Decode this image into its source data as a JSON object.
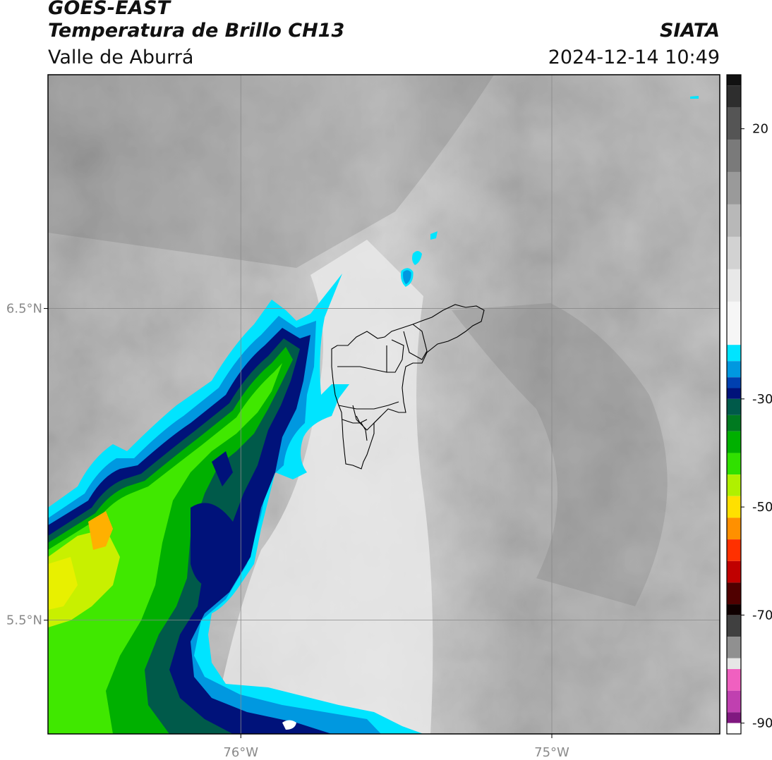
{
  "header": {
    "satellite": "GOES-EAST",
    "product": "Temperatura de Brillo CH13",
    "region": "Valle de Aburrá",
    "agency": "SIATA",
    "datetime": "2024-12-14 10:49"
  },
  "map": {
    "lon_range": [
      -76.62,
      -74.46
    ],
    "lat_range": [
      5.135,
      7.25
    ],
    "lat_ticks": [
      {
        "value": 6.5,
        "label": "6.5°N"
      },
      {
        "value": 5.5,
        "label": "5.5°N"
      }
    ],
    "lon_ticks": [
      {
        "value": -76,
        "label": "76°W"
      },
      {
        "value": -75,
        "label": "75°W"
      }
    ],
    "grid": true
  },
  "colorbar": {
    "range": [
      -92,
      30
    ],
    "ticks": [
      {
        "value": 20,
        "label": "20"
      },
      {
        "value": -30,
        "label": "-30"
      },
      {
        "value": -50,
        "label": "-50"
      },
      {
        "value": -70,
        "label": "-70"
      },
      {
        "value": -90,
        "label": "-90"
      }
    ],
    "segments": [
      {
        "from": 30,
        "to": 28,
        "color": "#111111"
      },
      {
        "from": 28,
        "to": 24,
        "color": "#2e2e2e"
      },
      {
        "from": 24,
        "to": 18,
        "color": "#555555"
      },
      {
        "from": 18,
        "to": 12,
        "color": "#7a7a7a"
      },
      {
        "from": 12,
        "to": 6,
        "color": "#9a9a9a"
      },
      {
        "from": 6,
        "to": 0,
        "color": "#b8b8b8"
      },
      {
        "from": 0,
        "to": -6,
        "color": "#d2d2d2"
      },
      {
        "from": -6,
        "to": -12,
        "color": "#e8e8e8"
      },
      {
        "from": -12,
        "to": -20,
        "color": "#f6f6f6"
      },
      {
        "from": -20,
        "to": -23,
        "color": "#00e4ff"
      },
      {
        "from": -23,
        "to": -26,
        "color": "#0098e0"
      },
      {
        "from": -26,
        "to": -28,
        "color": "#0040b0"
      },
      {
        "from": -28,
        "to": -30,
        "color": "#00127a"
      },
      {
        "from": -30,
        "to": -33,
        "color": "#005a4a"
      },
      {
        "from": -33,
        "to": -36,
        "color": "#007a20"
      },
      {
        "from": -36,
        "to": -40,
        "color": "#00b000"
      },
      {
        "from": -40,
        "to": -44,
        "color": "#30e000"
      },
      {
        "from": -44,
        "to": -48,
        "color": "#b0f000"
      },
      {
        "from": -48,
        "to": -52,
        "color": "#ffe000"
      },
      {
        "from": -52,
        "to": -56,
        "color": "#ff9000"
      },
      {
        "from": -56,
        "to": -60,
        "color": "#ff3000"
      },
      {
        "from": -60,
        "to": -64,
        "color": "#c00000"
      },
      {
        "from": -64,
        "to": -68,
        "color": "#500000"
      },
      {
        "from": -68,
        "to": -70,
        "color": "#100000"
      },
      {
        "from": -70,
        "to": -74,
        "color": "#404040"
      },
      {
        "from": -74,
        "to": -78,
        "color": "#909090"
      },
      {
        "from": -78,
        "to": -80,
        "color": "#e6e6e6"
      },
      {
        "from": -80,
        "to": -84,
        "color": "#f060c0"
      },
      {
        "from": -84,
        "to": -88,
        "color": "#c040b0"
      },
      {
        "from": -88,
        "to": -90,
        "color": "#801880"
      },
      {
        "from": -90,
        "to": -92,
        "color": "#ffffff"
      }
    ]
  },
  "colors": {
    "cold_cyan": "#00e4ff",
    "cold_blue": "#0040b0",
    "deep_blue": "#00127a",
    "green": "#00b000",
    "lime": "#40e800",
    "yellow": "#e8f000",
    "orange": "#ffb000",
    "boundary": "#000000",
    "grid": "#8a8a8a"
  }
}
